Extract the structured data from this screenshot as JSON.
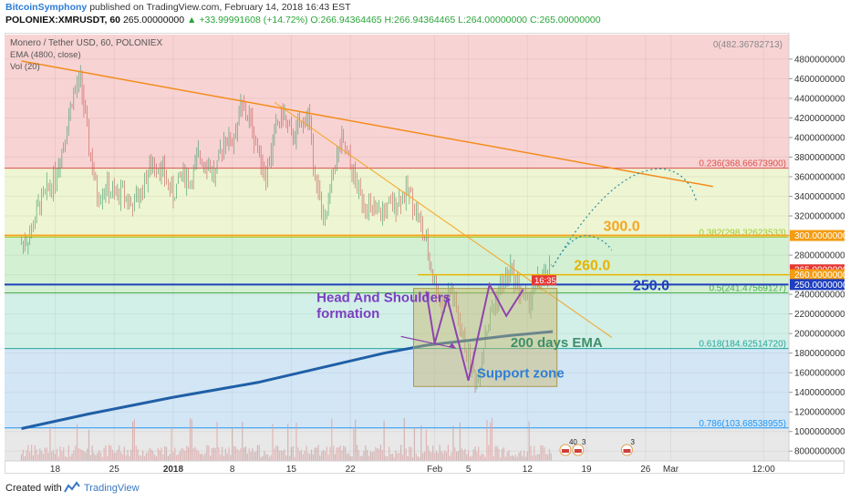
{
  "header": {
    "author": "BitcoinSymphony",
    "published_text": "published on TradingView.com, February 14, 2018 16:43 EST",
    "symbol": "POLONIEX:XMRUSDT, 60",
    "last": "265.00000000",
    "change": "+33.99991608 (+14.72%)",
    "ohlc": "O:266.94364465 H:266.94364465 L:264.00000000 C:265.00000000"
  },
  "legend": {
    "title": "Monero / Tether USD, 60, POLONIEX",
    "ema": "EMA (4800, close)",
    "vol": "Vol (20)"
  },
  "fib_top_label": "0(482.36782713)",
  "chart_data": {
    "type": "line",
    "title": "Monero / Tether USD, 60, POLONIEX",
    "ylim": [
      70,
      505
    ],
    "y_ticks": [
      480,
      460,
      440,
      420,
      400,
      380,
      360,
      340,
      320,
      300,
      280,
      260,
      240,
      220,
      200,
      180,
      160,
      140,
      120,
      100,
      80
    ],
    "y_tick_format": "00000000",
    "x_ticks": [
      "18",
      "25",
      "2018",
      "8",
      "15",
      "22",
      "Feb",
      "5",
      "12",
      "19",
      "26",
      "Mar",
      "12:00"
    ],
    "x_tick_positions_days": [
      -14,
      -7,
      0,
      7,
      14,
      21,
      31,
      35,
      42,
      49,
      56,
      59,
      70
    ],
    "price_series": {
      "name": "XMRUSDT",
      "x_days": [
        -18,
        -17,
        -16,
        -15,
        -14,
        -13,
        -12,
        -11,
        -10,
        -9,
        -8,
        -7,
        -6,
        -5,
        -4,
        -3,
        -2,
        -1,
        0,
        1,
        2,
        3,
        4,
        5,
        6,
        7,
        8,
        9,
        10,
        11,
        12,
        13,
        14,
        15,
        16,
        17,
        18,
        19,
        20,
        21,
        22,
        23,
        24,
        25,
        26,
        27,
        28,
        29,
        30,
        31,
        32,
        33,
        34,
        35,
        36,
        37,
        38,
        39,
        40,
        41,
        42,
        43,
        44,
        45
      ],
      "close": [
        292,
        300,
        330,
        345,
        360,
        395,
        440,
        460,
        390,
        340,
        350,
        340,
        345,
        330,
        340,
        365,
        375,
        360,
        340,
        365,
        355,
        380,
        375,
        360,
        400,
        395,
        430,
        420,
        390,
        360,
        405,
        425,
        400,
        410,
        425,
        350,
        310,
        370,
        395,
        370,
        345,
        330,
        320,
        325,
        330,
        340,
        345,
        320,
        290,
        250,
        230,
        245,
        205,
        175,
        150,
        200,
        230,
        250,
        265,
        245,
        230,
        250,
        255,
        265
      ]
    },
    "ema_series": {
      "name": "EMA (4800, close)",
      "x_days": [
        -18,
        -10,
        0,
        10,
        20,
        25,
        30,
        35,
        40,
        45
      ],
      "values": [
        103,
        118,
        135,
        150,
        170,
        180,
        188,
        193,
        198,
        202
      ]
    },
    "fib_levels": [
      {
        "ratio": "0.236",
        "value": 368.666739,
        "label": "0.236(368.66673900)",
        "color": "#d9534f"
      },
      {
        "ratio": "0.382",
        "value": 298.32623533,
        "label": "0.382(298.32623533)",
        "color": "#9acd32"
      },
      {
        "ratio": "0.5",
        "value": 241.47569127,
        "label": "0.5(241.47569127)",
        "color": "#4caf50"
      },
      {
        "ratio": "0.618",
        "value": 184.6251472,
        "label": "0.618(184.62514720)",
        "color": "#26a69a"
      },
      {
        "ratio": "0.786",
        "value": 103.68538955,
        "label": "0.786(103.68538955)",
        "color": "#2196f3"
      }
    ],
    "horizontal_lines": [
      {
        "value": 300,
        "label": "300.0",
        "color": "#f5a623"
      },
      {
        "value": 260,
        "label": "260.0",
        "color": "#e6b400"
      },
      {
        "value": 250,
        "label": "250.0",
        "color": "#1f3fbf"
      }
    ],
    "price_tags": [
      {
        "value": 300,
        "label": "300.00000000",
        "color": "#f39c12"
      },
      {
        "value": 265,
        "label": "265.00000000",
        "color": "#e53935"
      },
      {
        "value": 260,
        "label": "260.00000000",
        "color": "#f39c12"
      },
      {
        "value": 250,
        "label": "250.00000000",
        "color": "#1f3fbf"
      }
    ],
    "countdown": "16:35",
    "annotations": {
      "hs_line1": "Head And Shoulders",
      "hs_line2": "formation",
      "ema200": "200 days EMA",
      "support": "Support zone"
    },
    "event_badges": [
      "40",
      "3",
      "3"
    ]
  },
  "footer": {
    "created_with": "Created with",
    "brand": "TradingView"
  },
  "colors": {
    "fib_red_bg": "#f8d3d3",
    "fib_yellow_bg": "#eef5d2",
    "fib_green_bg": "#d3f0d3",
    "fib_teal_bg": "#d2efe8",
    "fib_blue_bg": "#d3e6f5",
    "candle_up": "#3c9a6b",
    "candle_down": "#c85a5a",
    "ema": "#1f5fa6",
    "trend_orange": "#f28c1b",
    "support_box": "#c8b56a",
    "annotation_purple": "#7b3fc1"
  }
}
